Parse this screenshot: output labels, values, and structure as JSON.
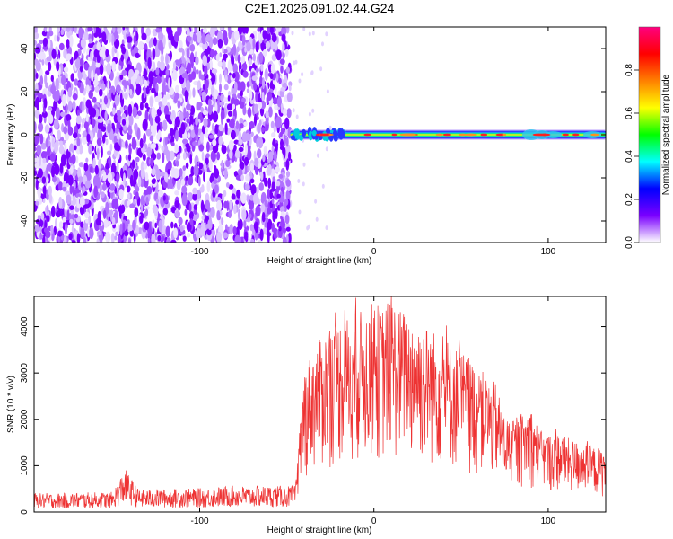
{
  "title": "C2E1.2026.091.02.44.G24",
  "chart_data": [
    {
      "type": "heatmap",
      "xlabel": "Height of straight line (km)",
      "ylabel": "Frequency (Hz)",
      "xlim": [
        -195,
        133
      ],
      "ylim": [
        -50,
        50
      ],
      "x_ticks": [
        -100,
        0,
        100
      ],
      "x_tick_labels": [
        "-100",
        "0",
        "100"
      ],
      "y_ticks": [
        -40,
        -20,
        0,
        20,
        40
      ],
      "y_tick_labels": [
        "-40",
        "-20",
        "0",
        "20",
        "40"
      ],
      "colorbar": {
        "label": "Normalized spectral amplitude",
        "range": [
          0.0,
          1.0
        ],
        "ticks": [
          0.0,
          0.2,
          0.4,
          0.6,
          0.8
        ],
        "tick_labels": [
          "0.0",
          "0.2",
          "0.4",
          "0.6",
          "0.8"
        ],
        "colormap": [
          "#ffffff",
          "#7a00ff",
          "#0000ff",
          "#00ffff",
          "#00ff00",
          "#ffff00",
          "#ff8000",
          "#ff0000",
          "#ff0080"
        ]
      },
      "noise_region_km": [
        -195,
        -48
      ],
      "noise_color": "#7a00ff",
      "signal_band_hz": 0,
      "signal_start_km": -48
    },
    {
      "type": "line",
      "xlabel": "Height of straight line (km)",
      "ylabel": "SNR (10 * v/v)",
      "xlim": [
        -195,
        133
      ],
      "ylim": [
        0,
        4650
      ],
      "x_ticks": [
        -100,
        0,
        100
      ],
      "x_tick_labels": [
        "-100",
        "0",
        "100"
      ],
      "y_ticks": [
        0,
        1000,
        2000,
        3000,
        4000
      ],
      "y_tick_labels": [
        "0",
        "1000",
        "2000",
        "3000",
        "4000"
      ],
      "line_color": "#ee3333",
      "envelope_x": [
        -195,
        -150,
        -143,
        -135,
        -100,
        -85,
        -45,
        -42,
        -40,
        -35,
        -30,
        -25,
        -20,
        -15,
        -10,
        -5,
        0,
        5,
        10,
        15,
        20,
        25,
        30,
        35,
        40,
        45,
        50,
        55,
        60,
        65,
        70,
        75,
        80,
        85,
        90,
        95,
        100,
        105,
        110,
        115,
        120,
        125,
        133
      ],
      "envelope_y": [
        300,
        320,
        700,
        360,
        380,
        420,
        420,
        1500,
        2300,
        2600,
        2800,
        3000,
        3100,
        3150,
        3200,
        3250,
        3350,
        3300,
        3450,
        3250,
        3200,
        3100,
        3000,
        2900,
        2850,
        2700,
        2600,
        2450,
        2350,
        2150,
        2050,
        1550,
        1450,
        1550,
        1700,
        1300,
        1250,
        1300,
        1200,
        1150,
        1100,
        1050,
        1000
      ]
    }
  ]
}
